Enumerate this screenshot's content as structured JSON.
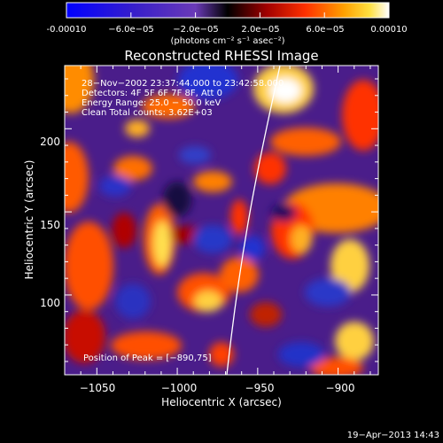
{
  "colorbar": {
    "tick_labels": [
      "-0.00010",
      "−6.0e−05",
      "−2.0e−05",
      "2.0e−05",
      "6.0e−05",
      "0.00010"
    ],
    "unit_label": "(photons cm⁻² s⁻¹ asec⁻²)"
  },
  "plot": {
    "title": "Reconstructed RHESSI Image",
    "info_lines": [
      "28−Nov−2002 23:37:44.000 to 23:42:58.000",
      "Detectors: 4F 5F 6F 7F 8F, Att 0",
      "Energy Range: 25.0 − 50.0 keV",
      "Clean    Total counts: 3.62E+03"
    ],
    "peak_label": "Position of Peak = [−890,75]",
    "xlabel": "Heliocentric X (arcsec)",
    "ylabel": "Heliocentric Y (arcsec)",
    "x_ticks": [
      "−1050",
      "−1000",
      "−950",
      "−900"
    ],
    "x_tick_values": [
      -1050,
      -1000,
      -950,
      -900
    ],
    "y_ticks": [
      "100",
      "150",
      "200"
    ],
    "y_tick_values": [
      100,
      150,
      200
    ],
    "x_range": [
      -1070,
      -875
    ],
    "y_range": [
      52,
      238
    ]
  },
  "footer": {
    "date": "19−Apr−2013 14:43"
  }
}
